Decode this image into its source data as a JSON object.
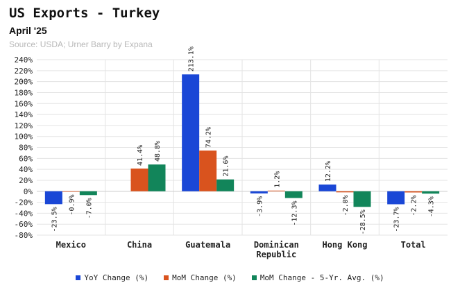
{
  "header": {
    "title": "US Exports - Turkey",
    "subtitle": "April '25",
    "source": "Source: USDA; Urner Barry by Expana"
  },
  "colors": {
    "yoy": "#1a47d6",
    "mom": "#d9531e",
    "avg": "#12855a",
    "grid": "#e3e3e3"
  },
  "chart_data": {
    "type": "bar",
    "title": "US Exports - Turkey",
    "subtitle": "April '25",
    "categories": [
      "Mexico",
      "China",
      "Guatemala",
      "Dominican Republic",
      "Hong Kong",
      "Total"
    ],
    "series": [
      {
        "name": "YoY Change (%)",
        "values": [
          -23.5,
          null,
          213.1,
          -3.9,
          12.2,
          -23.7
        ]
      },
      {
        "name": "MoM Change (%)",
        "values": [
          -0.9,
          41.4,
          74.2,
          1.2,
          -2.0,
          -2.2
        ]
      },
      {
        "name": "MoM Change - 5-Yr. Avg. (%)",
        "values": [
          -7.0,
          48.8,
          21.6,
          -12.3,
          -28.5,
          -4.3
        ]
      }
    ],
    "data_labels": [
      [
        "-23.5%",
        "",
        "213.1%",
        "-3.9%",
        "12.2%",
        "-23.7%"
      ],
      [
        "-0.9%",
        "41.4%",
        "74.2%",
        "1.2%",
        "-2.0%",
        "-2.2%"
      ],
      [
        "-7.0%",
        "48.8%",
        "21.6%",
        "-12.3%",
        "-28.5%",
        "-4.3%"
      ]
    ],
    "ylim": [
      -80,
      240
    ],
    "yticks": [
      -80,
      -60,
      -40,
      -20,
      0,
      20,
      40,
      60,
      80,
      100,
      120,
      140,
      160,
      180,
      200,
      220,
      240
    ],
    "ytick_labels": [
      "-80%",
      "-60%",
      "-40%",
      "-20%",
      "0%",
      "20%",
      "40%",
      "60%",
      "80%",
      "100%",
      "120%",
      "140%",
      "160%",
      "180%",
      "200%",
      "220%",
      "240%"
    ],
    "grid": true,
    "legend": "bottom"
  }
}
